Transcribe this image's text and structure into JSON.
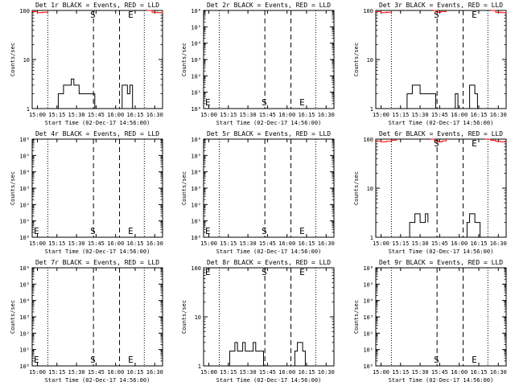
{
  "layout": {
    "rows": 3,
    "cols": 3
  },
  "colors": {
    "events": "#000000",
    "lld": "#ff0000"
  },
  "chart_data": [
    {
      "type": "line",
      "title": "Det 1r BLACK = Events, RED = LLD",
      "xlabel": "Start Time (02-Dec-17 14:56:00)",
      "ylabel": "Counts/sec",
      "x_ticks": [
        "15:00",
        "15:15",
        "15:30",
        "15:45",
        "16:00",
        "16:15",
        "16:30"
      ],
      "y_scale": "log",
      "ylim": [
        1,
        100
      ],
      "y_ticks": [
        "1",
        "10",
        "100"
      ],
      "markers": [
        {
          "label": "S",
          "time": "15:43"
        },
        {
          "label": "E",
          "time": "16:12"
        }
      ],
      "dotted_times": [
        "15:08",
        "16:22"
      ],
      "dashed_times": [
        "15:43",
        "16:03"
      ],
      "series": [
        {
          "color": "#000000",
          "x": [
            "15:14",
            "15:16",
            "15:18",
            "15:20",
            "15:22",
            "15:24",
            "15:26",
            "15:28",
            "15:30",
            "15:32",
            "15:34",
            "15:36",
            "15:38",
            "15:40",
            "15:42",
            "15:44"
          ],
          "y": [
            1,
            2,
            2,
            3,
            3,
            3,
            4,
            3,
            3,
            2,
            2,
            2,
            2,
            2,
            2,
            1
          ]
        },
        {
          "color": "#000000",
          "x": [
            "16:03",
            "16:05",
            "16:07",
            "16:09",
            "16:11",
            "16:13"
          ],
          "y": [
            1,
            3,
            3,
            2,
            3,
            1
          ]
        },
        {
          "color": "#ff0000",
          "x": [
            "14:56",
            "15:00",
            "15:04",
            "15:08"
          ],
          "y": [
            95,
            90,
            92,
            100
          ]
        },
        {
          "color": "#ff0000",
          "x": [
            "16:24",
            "16:28",
            "16:32",
            "16:36"
          ],
          "y": [
            100,
            92,
            90,
            95
          ]
        }
      ]
    },
    {
      "type": "line",
      "title": "Det 2r BLACK = Events, RED = LLD",
      "xlabel": "Start Time (02-Dec-17 14:56:00)",
      "ylabel": "Counts/sec",
      "x_ticks": [
        "15:00",
        "15:15",
        "15:30",
        "15:45",
        "16:00",
        "16:15",
        "16:30"
      ],
      "y_scale": "log",
      "ylim": [
        1,
        1000000
      ],
      "y_ticks": [
        "10⁰",
        "10¹",
        "10²",
        "10³",
        "10⁴",
        "10⁵",
        "10⁶"
      ],
      "markers": [
        {
          "label": "E",
          "time": "14:56"
        },
        {
          "label": "S",
          "time": "15:43"
        },
        {
          "label": "E",
          "time": "16:12"
        }
      ],
      "dotted_times": [
        "15:08",
        "16:22"
      ],
      "dashed_times": [
        "15:43",
        "16:03"
      ],
      "series": []
    },
    {
      "type": "line",
      "title": "Det 3r BLACK = Events, RED = LLD",
      "xlabel": "Start Time (02-Dec-17 14:56:00)",
      "ylabel": "Counts/sec",
      "x_ticks": [
        "15:00",
        "15:15",
        "15:30",
        "15:45",
        "16:00",
        "16:15",
        "16:30"
      ],
      "y_scale": "log",
      "ylim": [
        1,
        100
      ],
      "y_ticks": [
        "1",
        "10",
        "100"
      ],
      "markers": [
        {
          "label": "S",
          "time": "15:43"
        },
        {
          "label": "E",
          "time": "16:12"
        }
      ],
      "dotted_times": [
        "15:08",
        "16:22"
      ],
      "dashed_times": [
        "15:43",
        "16:03"
      ],
      "series": [
        {
          "color": "#000000",
          "x": [
            "15:18",
            "15:20",
            "15:22",
            "15:24",
            "15:26",
            "15:28",
            "15:30",
            "15:32",
            "15:34",
            "15:36",
            "15:38",
            "15:40",
            "15:42"
          ],
          "y": [
            1,
            2,
            2,
            3,
            3,
            3,
            2,
            2,
            2,
            2,
            2,
            2,
            1
          ]
        },
        {
          "color": "#000000",
          "x": [
            "15:55",
            "15:57",
            "15:59"
          ],
          "y": [
            1,
            2,
            1
          ]
        },
        {
          "color": "#000000",
          "x": [
            "16:06",
            "16:08",
            "16:10",
            "16:12",
            "16:14"
          ],
          "y": [
            1,
            3,
            3,
            2,
            1
          ]
        },
        {
          "color": "#ff0000",
          "x": [
            "14:56",
            "15:00",
            "15:04",
            "15:08"
          ],
          "y": [
            95,
            90,
            92,
            100
          ]
        },
        {
          "color": "#ff0000",
          "x": [
            "15:40",
            "15:43",
            "15:46",
            "15:50"
          ],
          "y": [
            100,
            92,
            95,
            100
          ]
        },
        {
          "color": "#ff0000",
          "x": [
            "16:24",
            "16:28",
            "16:32",
            "16:36"
          ],
          "y": [
            100,
            92,
            90,
            95
          ]
        }
      ]
    },
    {
      "type": "line",
      "title": "Det 4r BLACK = Events, RED = LLD",
      "xlabel": "Start Time (02-Dec-17 14:56:00)",
      "ylabel": "Counts/sec",
      "x_ticks": [
        "15:00",
        "15:15",
        "15:30",
        "15:45",
        "16:00",
        "16:15",
        "16:30"
      ],
      "y_scale": "log",
      "ylim": [
        1,
        1000000
      ],
      "y_ticks": [
        "10⁰",
        "10¹",
        "10²",
        "10³",
        "10⁴",
        "10⁵",
        "10⁶"
      ],
      "markers": [
        {
          "label": "E",
          "time": "14:56"
        },
        {
          "label": "S",
          "time": "15:43"
        },
        {
          "label": "E",
          "time": "16:12"
        }
      ],
      "dotted_times": [
        "15:08",
        "16:22"
      ],
      "dashed_times": [
        "15:43",
        "16:03"
      ],
      "series": []
    },
    {
      "type": "line",
      "title": "Det 5r BLACK = Events, RED = LLD",
      "xlabel": "Start Time (02-Dec-17 14:56:00)",
      "ylabel": "Counts/sec",
      "x_ticks": [
        "15:00",
        "15:15",
        "15:30",
        "15:45",
        "16:00",
        "16:15",
        "16:30"
      ],
      "y_scale": "log",
      "ylim": [
        1,
        1000000
      ],
      "y_ticks": [
        "10⁰",
        "10¹",
        "10²",
        "10³",
        "10⁴",
        "10⁵",
        "10⁶"
      ],
      "markers": [
        {
          "label": "E",
          "time": "14:56"
        },
        {
          "label": "S",
          "time": "15:43"
        },
        {
          "label": "E",
          "time": "16:12"
        }
      ],
      "dotted_times": [
        "15:08",
        "16:22"
      ],
      "dashed_times": [
        "15:43",
        "16:03"
      ],
      "series": []
    },
    {
      "type": "line",
      "title": "Det 6r BLACK = Events, RED = LLD",
      "xlabel": "Start Time (02-Dec-17 14:56:00)",
      "ylabel": "Counts/sec",
      "x_ticks": [
        "15:00",
        "15:15",
        "15:30",
        "15:45",
        "16:00",
        "16:15",
        "16:30"
      ],
      "y_scale": "log",
      "ylim": [
        1,
        100
      ],
      "y_ticks": [
        "1",
        "10",
        "100"
      ],
      "markers": [
        {
          "label": "S",
          "time": "15:43"
        },
        {
          "label": "E",
          "time": "16:12"
        }
      ],
      "dotted_times": [
        "15:08",
        "16:22"
      ],
      "dashed_times": [
        "15:43",
        "16:03"
      ],
      "series": [
        {
          "color": "#000000",
          "x": [
            "15:20",
            "15:22",
            "15:24",
            "15:26",
            "15:28",
            "15:30",
            "15:32",
            "15:34",
            "15:36"
          ],
          "y": [
            1,
            2,
            2,
            3,
            3,
            2,
            2,
            3,
            2
          ]
        },
        {
          "color": "#000000",
          "x": [
            "16:04",
            "16:06",
            "16:08",
            "16:10",
            "16:12",
            "16:14",
            "16:16"
          ],
          "y": [
            1,
            2,
            3,
            3,
            2,
            2,
            1
          ]
        },
        {
          "color": "#ff0000",
          "x": [
            "14:56",
            "15:00",
            "15:04",
            "15:08",
            "15:12"
          ],
          "y": [
            92,
            88,
            90,
            95,
            100
          ]
        },
        {
          "color": "#ff0000",
          "x": [
            "15:38",
            "15:41",
            "15:44",
            "15:47",
            "15:50"
          ],
          "y": [
            100,
            92,
            88,
            92,
            100
          ]
        },
        {
          "color": "#ff0000",
          "x": [
            "16:20",
            "16:24",
            "16:28",
            "16:32",
            "16:36"
          ],
          "y": [
            100,
            95,
            90,
            88,
            92
          ]
        }
      ]
    },
    {
      "type": "line",
      "title": "Det 7r BLACK = Events, RED = LLD",
      "xlabel": "Start Time (02-Dec-17 14:56:00)",
      "ylabel": "Counts/sec",
      "x_ticks": [
        "15:00",
        "15:15",
        "15:30",
        "15:45",
        "16:00",
        "16:15",
        "16:30"
      ],
      "y_scale": "log",
      "ylim": [
        1,
        1000000
      ],
      "y_ticks": [
        "10⁰",
        "10¹",
        "10²",
        "10³",
        "10⁴",
        "10⁵",
        "10⁶"
      ],
      "markers": [
        {
          "label": "E",
          "time": "14:56"
        },
        {
          "label": "S",
          "time": "15:43"
        },
        {
          "label": "E",
          "time": "16:12"
        }
      ],
      "dotted_times": [
        "15:08",
        "16:22"
      ],
      "dashed_times": [
        "15:43",
        "16:03"
      ],
      "series": []
    },
    {
      "type": "line",
      "title": "Det 8r BLACK = Events, RED = LLD",
      "xlabel": "Start Time (02-Dec-17 14:56:00)",
      "ylabel": "Counts/sec",
      "x_ticks": [
        "15:00",
        "15:15",
        "15:30",
        "15:45",
        "16:00",
        "16:15",
        "16:30"
      ],
      "y_scale": "log",
      "ylim": [
        1,
        100
      ],
      "y_ticks": [
        "1",
        "10",
        "100"
      ],
      "markers": [
        {
          "label": "E",
          "time": "14:56"
        },
        {
          "label": "S",
          "time": "15:43"
        },
        {
          "label": "E",
          "time": "16:12"
        }
      ],
      "dotted_times": [
        "15:08",
        "16:22"
      ],
      "dashed_times": [
        "15:43",
        "16:03"
      ],
      "series": [
        {
          "color": "#000000",
          "x": [
            "15:14",
            "15:16",
            "15:18",
            "15:20",
            "15:22",
            "15:24",
            "15:26",
            "15:28",
            "15:30",
            "15:32",
            "15:34",
            "15:36",
            "15:38",
            "15:40",
            "15:42"
          ],
          "y": [
            1,
            2,
            2,
            3,
            2,
            2,
            3,
            2,
            2,
            2,
            3,
            2,
            2,
            2,
            1
          ]
        },
        {
          "color": "#000000",
          "x": [
            "16:04",
            "16:06",
            "16:08",
            "16:10",
            "16:12",
            "16:14"
          ],
          "y": [
            1,
            2,
            3,
            3,
            2,
            1
          ]
        }
      ]
    },
    {
      "type": "line",
      "title": "Det 9r BLACK = Events, RED = LLD",
      "xlabel": "Start Time (02-Dec-17 14:56:00)",
      "ylabel": "Counts/sec",
      "x_ticks": [
        "15:00",
        "15:15",
        "15:30",
        "15:45",
        "16:00",
        "16:15",
        "16:30"
      ],
      "y_scale": "log",
      "ylim": [
        1,
        1000000
      ],
      "y_ticks": [
        "10⁰",
        "10¹",
        "10²",
        "10³",
        "10⁴",
        "10⁵",
        "10⁶"
      ],
      "markers": [
        {
          "label": "S",
          "time": "15:43"
        },
        {
          "label": "E",
          "time": "16:12"
        }
      ],
      "dotted_times": [
        "15:08",
        "16:22"
      ],
      "dashed_times": [
        "15:43",
        "16:03"
      ],
      "series": []
    }
  ]
}
